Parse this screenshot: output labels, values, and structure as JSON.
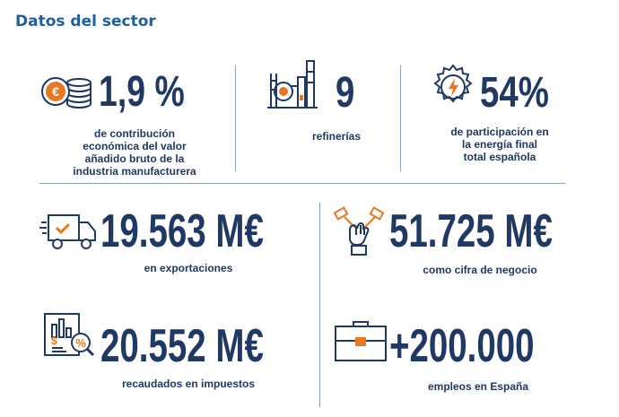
{
  "title": "Datos del sector",
  "stats": {
    "contribution": {
      "value": "1,9 %",
      "label": "de contribución\neconómica del valor\nañadido bruto de la\nindustria manufacturera",
      "icon": "euro-coins-icon"
    },
    "refineries": {
      "value": "9",
      "label": "refinerías",
      "icon": "refinery-icon"
    },
    "share": {
      "value": "54%",
      "label": "de participación en\nla energía final\ntotal española",
      "icon": "energy-gear-icon"
    },
    "exports": {
      "value": "19.563 M€",
      "label": "en exportaciones",
      "icon": "delivery-truck-icon"
    },
    "turnover": {
      "value": "51.725 M€",
      "label": "como cifra de negocio",
      "icon": "handshake-icon"
    },
    "taxes": {
      "value": "20.552 M€",
      "label": "recaudados en impuestos",
      "icon": "tax-report-icon"
    },
    "jobs": {
      "value": "+200.000",
      "label": "empleos en España",
      "icon": "briefcase-icon"
    }
  },
  "colors": {
    "navy": "#1f3864",
    "orange": "#e87722",
    "title_blue": "#1f5fa0",
    "divider": "#8aa0c2"
  }
}
